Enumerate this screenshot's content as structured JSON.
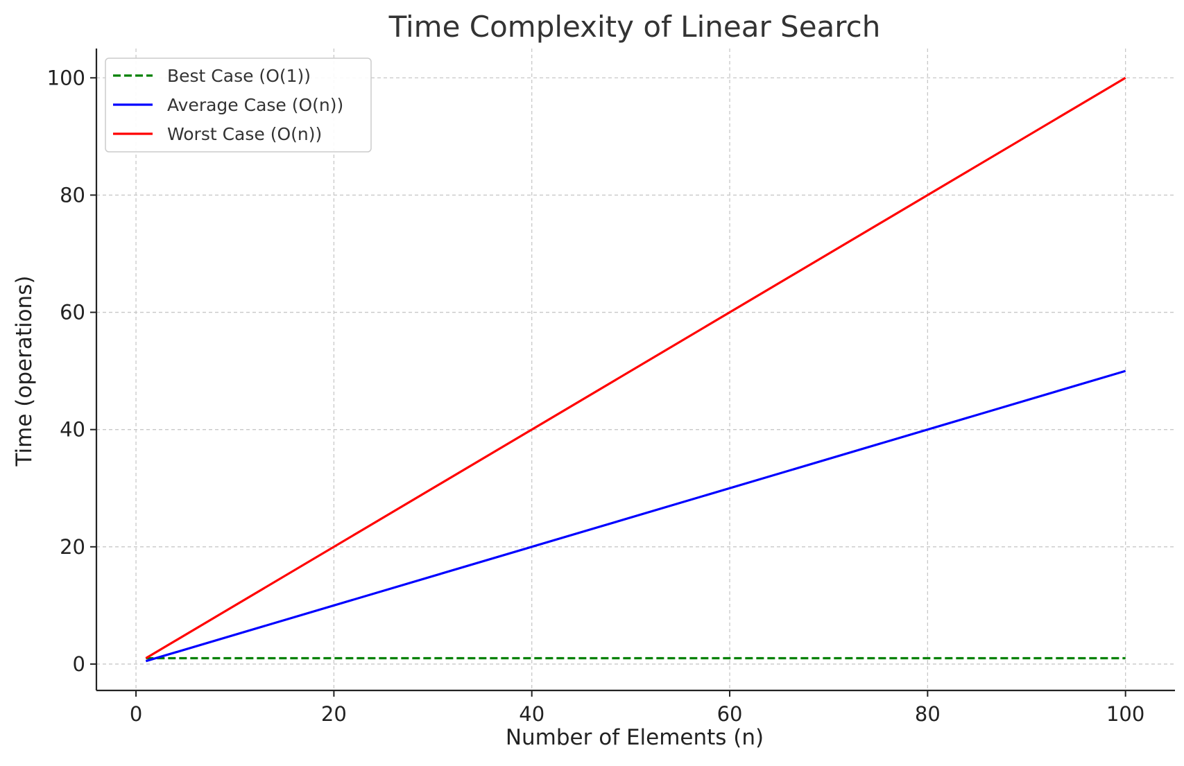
{
  "chart_data": {
    "type": "line",
    "title": "Time Complexity of Linear Search",
    "xlabel": "Number of Elements (n)",
    "ylabel": "Time (operations)",
    "xlim": [
      -4,
      105
    ],
    "ylim": [
      -4.5,
      105
    ],
    "xticks": [
      0,
      20,
      40,
      60,
      80,
      100
    ],
    "yticks": [
      0,
      20,
      40,
      60,
      80,
      100
    ],
    "grid": true,
    "legend_position": "top-left",
    "series": [
      {
        "name": "Best Case (O(1))",
        "color": "#008000",
        "style": "dashed",
        "x": [
          1,
          100
        ],
        "y": [
          1,
          1
        ]
      },
      {
        "name": "Average Case (O(n))",
        "color": "#0000ff",
        "style": "solid",
        "x": [
          1,
          100
        ],
        "y": [
          0.5,
          50
        ]
      },
      {
        "name": "Worst Case (O(n))",
        "color": "#ff0000",
        "style": "solid",
        "x": [
          1,
          100
        ],
        "y": [
          1,
          100
        ]
      }
    ]
  }
}
